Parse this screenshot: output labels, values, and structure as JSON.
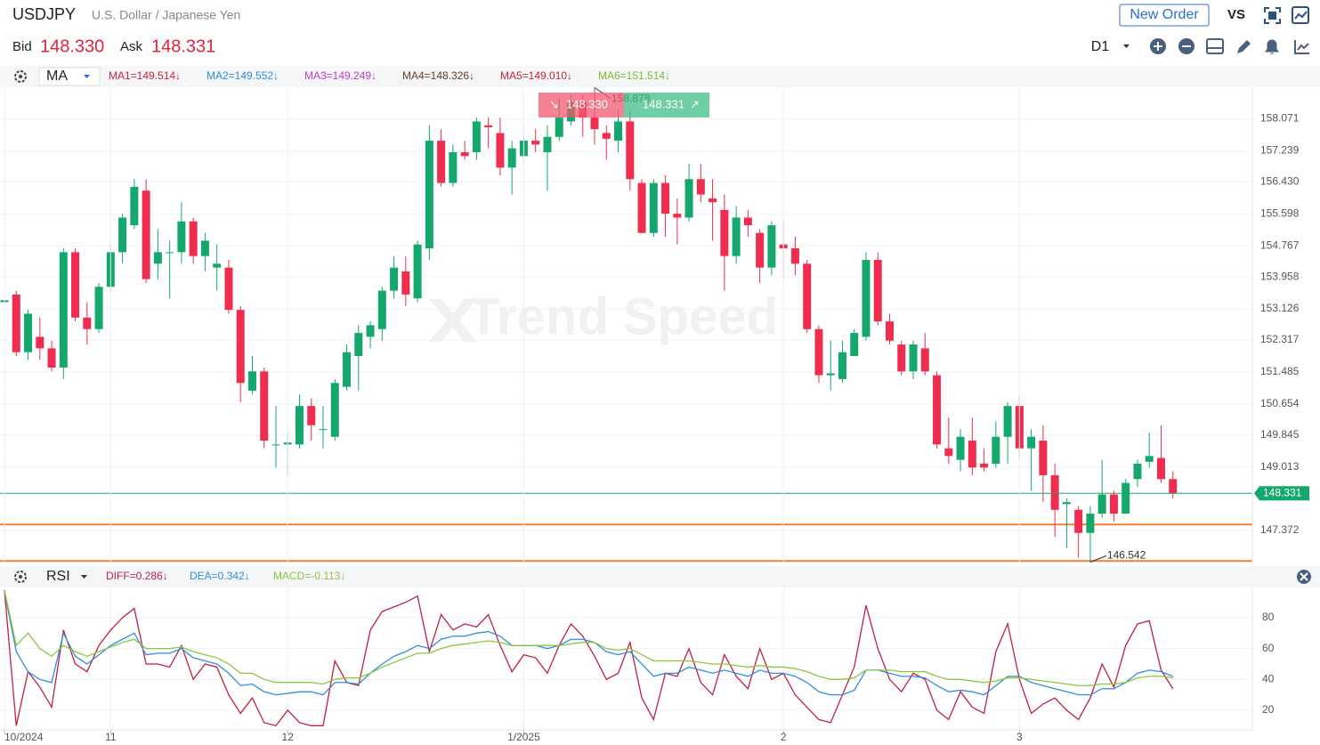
{
  "header": {
    "symbol": "USDJPY",
    "name": "U.S. Dollar / Japanese Yen",
    "new_order": "New Order",
    "vs": "VS",
    "bid_label": "Bid",
    "bid": "148.330",
    "ask_label": "Ask",
    "ask": "148.331",
    "timeframe": "D1"
  },
  "quick_trade": {
    "sell": "148.330",
    "buy": "148.331"
  },
  "indicator_bar": {
    "name": "MA",
    "items": [
      {
        "text": "MA1=149.514↓",
        "color": "#d0213b"
      },
      {
        "text": "MA2=149.552↓",
        "color": "#2f8ee0"
      },
      {
        "text": "MA3=149.249↓",
        "color": "#c23ac8"
      },
      {
        "text": "MA4=148.326↓",
        "color": "#6b3a1e"
      },
      {
        "text": "MA5=149.010↓",
        "color": "#d0213b"
      },
      {
        "text": "MA6=151.514↓",
        "color": "#7bbd2e"
      }
    ]
  },
  "sub_indicator_bar": {
    "name": "RSI"
  },
  "watermark": "Trend Speed",
  "chart_data": [
    {
      "type": "candlestick",
      "up_color": "#14a86d",
      "down_color": "#ef2d4e",
      "ylim": [
        146.53,
        158.89
      ],
      "yticks": [
        158.071,
        157.239,
        {
          "value": 156.43,
          "label": "156.430"
        },
        155.598,
        154.767,
        153.958,
        153.126,
        152.317,
        151.485,
        150.654,
        149.845,
        149.013,
        147.372
      ],
      "last_price": 148.331,
      "last_price_color": "#14a86d",
      "levels": [
        {
          "value": 147.52,
          "color": "#f08033"
        },
        {
          "value": 146.57,
          "color": "#f08033"
        }
      ],
      "open": [
        153.3,
        153.5,
        152.0,
        152.4,
        152.1,
        151.6,
        154.6,
        152.9,
        152.6,
        153.7,
        154.6,
        155.3,
        156.2,
        154.3,
        154.6,
        154.6,
        155.4,
        154.5,
        154.2,
        154.2,
        153.1,
        151.0,
        151.5,
        149.6,
        149.6,
        149.6,
        150.6,
        150.0,
        149.8,
        151.1,
        151.9,
        152.4,
        152.6,
        153.6,
        154.1,
        153.4,
        154.7,
        157.5,
        156.4,
        157.2,
        157.2,
        157.9,
        157.7,
        156.8,
        157.1,
        157.5,
        157.2,
        157.6,
        158.0,
        158.5,
        158.1,
        157.7,
        157.5,
        158.0,
        156.4,
        155.1,
        156.4,
        155.6,
        155.5,
        156.5,
        156.0,
        155.7,
        154.5,
        155.5,
        155.1,
        154.2,
        154.8,
        154.7,
        154.3,
        152.6,
        151.4,
        151.3,
        151.9,
        152.4,
        154.4,
        152.8,
        152.2,
        151.5,
        152.1,
        151.4,
        149.5,
        149.2,
        149.7,
        149.1,
        149.1,
        149.8,
        150.6,
        149.5,
        149.7,
        148.8,
        148.05,
        147.9,
        147.3,
        147.8,
        148.3,
        147.8,
        148.7,
        149.15,
        149.25,
        148.7
      ],
      "high": [
        153.4,
        153.6,
        153.1,
        152.9,
        152.3,
        154.7,
        154.7,
        153.3,
        153.8,
        154.8,
        155.6,
        156.5,
        156.5,
        155.2,
        154.9,
        155.9,
        155.5,
        155.1,
        154.8,
        154.4,
        153.2,
        151.9,
        151.6,
        150.6,
        149.9,
        150.9,
        150.8,
        150.6,
        151.3,
        152.2,
        152.7,
        152.8,
        153.7,
        154.5,
        154.5,
        154.9,
        157.9,
        157.8,
        157.4,
        157.5,
        158.1,
        158.1,
        158.1,
        157.5,
        157.9,
        157.8,
        157.9,
        158.6,
        158.7,
        158.7,
        158.878,
        157.9,
        158.3,
        158.3,
        156.5,
        156.5,
        156.6,
        156.0,
        156.9,
        156.9,
        156.5,
        156.1,
        155.8,
        155.7,
        155.2,
        155.4,
        155.4,
        155.0,
        154.4,
        152.7,
        152.3,
        152.3,
        152.6,
        154.6,
        154.6,
        153.0,
        152.3,
        152.3,
        152.5,
        151.5,
        150.3,
        150.0,
        150.3,
        149.5,
        150.2,
        150.7,
        150.9,
        150.0,
        150.1,
        149.1,
        148.2,
        148.0,
        148.0,
        149.2,
        148.4,
        148.7,
        149.2,
        149.9,
        150.1,
        148.9
      ],
      "low": [
        153.25,
        151.9,
        151.8,
        151.8,
        151.5,
        151.3,
        152.8,
        152.2,
        152.5,
        153.6,
        154.3,
        155.2,
        153.8,
        153.9,
        153.4,
        154.3,
        154.3,
        154.1,
        153.6,
        153.0,
        150.7,
        150.9,
        149.5,
        149.0,
        148.8,
        149.5,
        149.7,
        149.5,
        149.7,
        151.0,
        151.0,
        152.1,
        152.3,
        153.4,
        153.2,
        153.3,
        154.4,
        156.3,
        156.3,
        157.0,
        157.0,
        157.3,
        156.6,
        156.1,
        156.9,
        157.2,
        156.2,
        157.5,
        157.9,
        157.6,
        157.4,
        157.0,
        157.2,
        156.2,
        155.1,
        155.0,
        155.0,
        154.8,
        155.4,
        155.9,
        154.9,
        153.6,
        154.3,
        155.0,
        153.8,
        154.0,
        153.9,
        154.0,
        152.5,
        151.2,
        151.0,
        151.2,
        151.9,
        152.3,
        152.7,
        152.2,
        151.4,
        151.3,
        151.4,
        149.5,
        149.1,
        148.9,
        148.8,
        148.9,
        149.0,
        149.1,
        149.2,
        148.4,
        148.1,
        147.2,
        146.9,
        146.65,
        146.542,
        147.7,
        147.6,
        147.8,
        148.5,
        149.0,
        148.6,
        148.2
      ],
      "close": [
        153.35,
        152.0,
        153.0,
        152.1,
        151.6,
        154.6,
        152.9,
        152.6,
        153.7,
        154.6,
        155.5,
        156.3,
        153.9,
        154.6,
        154.6,
        155.4,
        154.5,
        154.9,
        154.3,
        153.1,
        151.2,
        151.5,
        149.7,
        149.6,
        149.65,
        150.6,
        150.1,
        150.0,
        151.2,
        152.0,
        152.5,
        152.7,
        153.6,
        154.2,
        153.5,
        154.8,
        157.5,
        156.4,
        157.2,
        157.1,
        158.0,
        157.85,
        156.8,
        157.3,
        157.5,
        157.4,
        157.6,
        158.1,
        158.5,
        158.1,
        157.8,
        157.55,
        158.0,
        156.5,
        155.1,
        156.4,
        155.6,
        155.5,
        156.5,
        156.1,
        155.9,
        154.5,
        155.5,
        155.3,
        154.2,
        155.3,
        154.7,
        154.3,
        152.6,
        151.4,
        151.45,
        152.0,
        152.5,
        154.4,
        152.8,
        152.3,
        151.5,
        152.2,
        151.5,
        149.6,
        149.3,
        149.8,
        149.0,
        149.0,
        149.8,
        150.6,
        149.5,
        149.8,
        148.8,
        147.9,
        148.1,
        147.3,
        147.8,
        148.3,
        147.8,
        148.6,
        149.1,
        149.3,
        148.7,
        148.33
      ]
    },
    {
      "type": "line",
      "ylim": [
        7.3,
        99.6
      ],
      "yticks": [
        20,
        40,
        60,
        80
      ],
      "categories": [
        "10/2024",
        null,
        null,
        null,
        null,
        null,
        null,
        null,
        null,
        "11",
        null,
        null,
        null,
        null,
        null,
        null,
        null,
        null,
        null,
        null,
        null,
        null,
        null,
        null,
        "12",
        null,
        null,
        null,
        null,
        null,
        null,
        null,
        null,
        null,
        null,
        null,
        null,
        null,
        null,
        null,
        null,
        null,
        null,
        null,
        "1/2025",
        null,
        null,
        null,
        null,
        null,
        null,
        null,
        null,
        null,
        null,
        null,
        null,
        null,
        null,
        null,
        null,
        null,
        null,
        null,
        null,
        null,
        "2",
        null,
        null,
        null,
        null,
        null,
        null,
        null,
        null,
        null,
        null,
        null,
        null,
        null,
        null,
        null,
        null,
        null,
        null,
        null,
        "3",
        null,
        null,
        null,
        null,
        null,
        null,
        null,
        null,
        null,
        null,
        null,
        null,
        null
      ],
      "series": [
        {
          "name": "DIFF=0.286↓",
          "color": "#c0203f",
          "values": [
            98,
            10,
            45,
            35,
            22,
            72,
            50,
            45,
            62,
            72,
            80,
            86,
            50,
            50,
            48,
            62,
            40,
            50,
            48,
            30,
            18,
            28,
            12,
            10,
            20,
            12,
            10,
            10,
            52,
            38,
            36,
            72,
            84,
            87,
            90,
            94,
            58,
            82,
            72,
            76,
            74,
            82,
            62,
            45,
            56,
            54,
            44,
            62,
            76,
            68,
            55,
            40,
            44,
            64,
            28,
            14,
            44,
            42,
            60,
            38,
            30,
            56,
            42,
            34,
            60,
            40,
            44,
            30,
            22,
            14,
            12,
            30,
            48,
            88,
            60,
            40,
            32,
            44,
            40,
            20,
            14,
            32,
            22,
            18,
            58,
            76,
            40,
            18,
            24,
            28,
            20,
            14,
            28,
            50,
            35,
            62,
            76,
            78,
            46,
            34
          ]
        },
        {
          "name": "DEA=0.342↓",
          "color": "#2f8ee0",
          "values": [
            97,
            58,
            45,
            40,
            38,
            70,
            55,
            50,
            56,
            62,
            66,
            70,
            56,
            57,
            57,
            60,
            54,
            52,
            50,
            44,
            36,
            37,
            32,
            30,
            31,
            32,
            32,
            30,
            38,
            38,
            37,
            44,
            50,
            55,
            58,
            62,
            60,
            66,
            68,
            68,
            70,
            71,
            68,
            62,
            62,
            62,
            60,
            62,
            66,
            66,
            64,
            58,
            56,
            58,
            50,
            42,
            44,
            44,
            48,
            46,
            44,
            46,
            44,
            42,
            46,
            44,
            44,
            42,
            38,
            32,
            30,
            30,
            33,
            46,
            46,
            44,
            42,
            42,
            41,
            36,
            32,
            33,
            32,
            30,
            36,
            42,
            42,
            38,
            36,
            34,
            32,
            30,
            30,
            34,
            34,
            38,
            44,
            46,
            45,
            42
          ]
        },
        {
          "name": "MACD=-0.113↓",
          "color": "#8cc63f",
          "values": [
            98,
            62,
            70,
            60,
            55,
            62,
            58,
            55,
            58,
            61,
            64,
            66,
            60,
            60,
            60,
            61,
            58,
            56,
            54,
            50,
            44,
            44,
            40,
            38,
            38,
            38,
            38,
            37,
            40,
            41,
            41,
            44,
            48,
            51,
            54,
            57,
            57,
            60,
            62,
            63,
            64,
            65,
            64,
            62,
            62,
            62,
            62,
            62,
            63,
            64,
            64,
            60,
            59,
            60,
            56,
            52,
            52,
            52,
            52,
            51,
            50,
            50,
            49,
            48,
            49,
            48,
            48,
            47,
            45,
            42,
            40,
            40,
            41,
            46,
            46,
            46,
            45,
            45,
            45,
            42,
            40,
            40,
            39,
            38,
            39,
            41,
            41,
            40,
            39,
            38,
            37,
            36,
            36,
            37,
            37,
            38,
            41,
            42,
            42,
            41
          ]
        }
      ]
    }
  ]
}
